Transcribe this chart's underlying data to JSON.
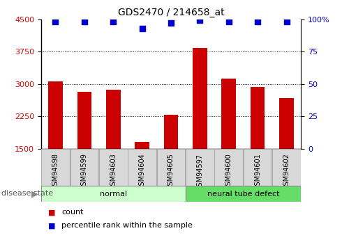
{
  "title": "GDS2470 / 214658_at",
  "samples": [
    "GSM94598",
    "GSM94599",
    "GSM94603",
    "GSM94604",
    "GSM94605",
    "GSM94597",
    "GSM94600",
    "GSM94601",
    "GSM94602"
  ],
  "bar_values": [
    3060,
    2820,
    2870,
    1660,
    2290,
    3840,
    3120,
    2930,
    2680
  ],
  "percentile_values": [
    98,
    98,
    98,
    93,
    97,
    99,
    98,
    98,
    98
  ],
  "bar_color": "#cc0000",
  "dot_color": "#0000cc",
  "ylim_left": [
    1500,
    4500
  ],
  "ylim_right": [
    0,
    100
  ],
  "yticks_left": [
    1500,
    2250,
    3000,
    3750,
    4500
  ],
  "yticks_right": [
    0,
    25,
    50,
    75,
    100
  ],
  "groups": [
    {
      "label": "normal",
      "indices": [
        0,
        1,
        2,
        3,
        4
      ],
      "color": "#ccffcc"
    },
    {
      "label": "neural tube defect",
      "indices": [
        5,
        6,
        7,
        8
      ],
      "color": "#66dd66"
    }
  ],
  "disease_label": "disease state",
  "legend_items": [
    {
      "label": "count",
      "color": "#cc0000"
    },
    {
      "label": "percentile rank within the sample",
      "color": "#0000cc"
    }
  ],
  "grid_color": "black",
  "background_color": "#ffffff",
  "tick_label_color_left": "#cc0000",
  "tick_label_color_right": "#0000cc"
}
